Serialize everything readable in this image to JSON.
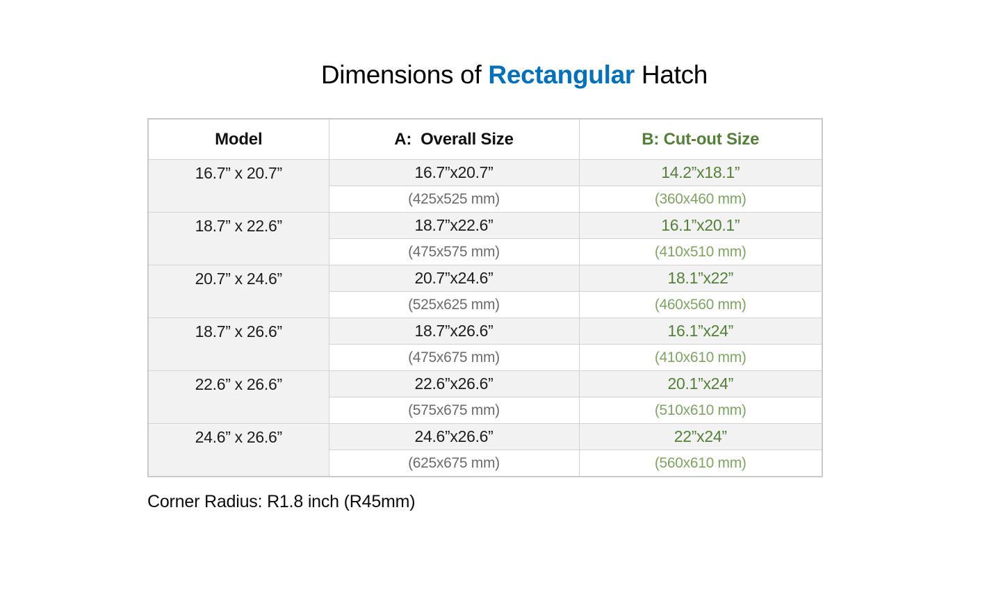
{
  "title": {
    "prefix": "Dimensions of ",
    "highlight": "Rectangular",
    "suffix": " Hatch"
  },
  "colors": {
    "blue": "#0070C0",
    "green": "#538135",
    "green-light": "#7ca55e",
    "row-shade": "#f2f2f2"
  },
  "table": {
    "headers": [
      "Model",
      "A:  Overall Size",
      "B: Cut-out Size"
    ],
    "rows": [
      {
        "model": "16.7” x 20.7”",
        "overall_in": "16.7”x20.7”",
        "overall_mm": "(425x525 mm)",
        "cutout_in": "14.2”x18.1”",
        "cutout_mm": "(360x460 mm)"
      },
      {
        "model": "18.7” x 22.6”",
        "overall_in": "18.7”x22.6”",
        "overall_mm": "(475x575 mm)",
        "cutout_in": "16.1”x20.1”",
        "cutout_mm": "(410x510 mm)"
      },
      {
        "model": "20.7” x 24.6”",
        "overall_in": "20.7”x24.6”",
        "overall_mm": "(525x625 mm)",
        "cutout_in": "18.1”x22”",
        "cutout_mm": "(460x560 mm)"
      },
      {
        "model": "18.7” x 26.6”",
        "overall_in": "18.7”x26.6”",
        "overall_mm": "(475x675 mm)",
        "cutout_in": "16.1”x24”",
        "cutout_mm": "(410x610 mm)"
      },
      {
        "model": "22.6” x 26.6”",
        "overall_in": "22.6”x26.6”",
        "overall_mm": "(575x675 mm)",
        "cutout_in": "20.1”x24”",
        "cutout_mm": "(510x610 mm)"
      },
      {
        "model": "24.6” x 26.6”",
        "overall_in": "24.6”x26.6”",
        "overall_mm": "(625x675 mm)",
        "cutout_in": "22”x24”",
        "cutout_mm": "(560x610 mm)"
      }
    ]
  },
  "footer": {
    "note": "Corner Radius: R1.8 inch (R45mm)"
  }
}
